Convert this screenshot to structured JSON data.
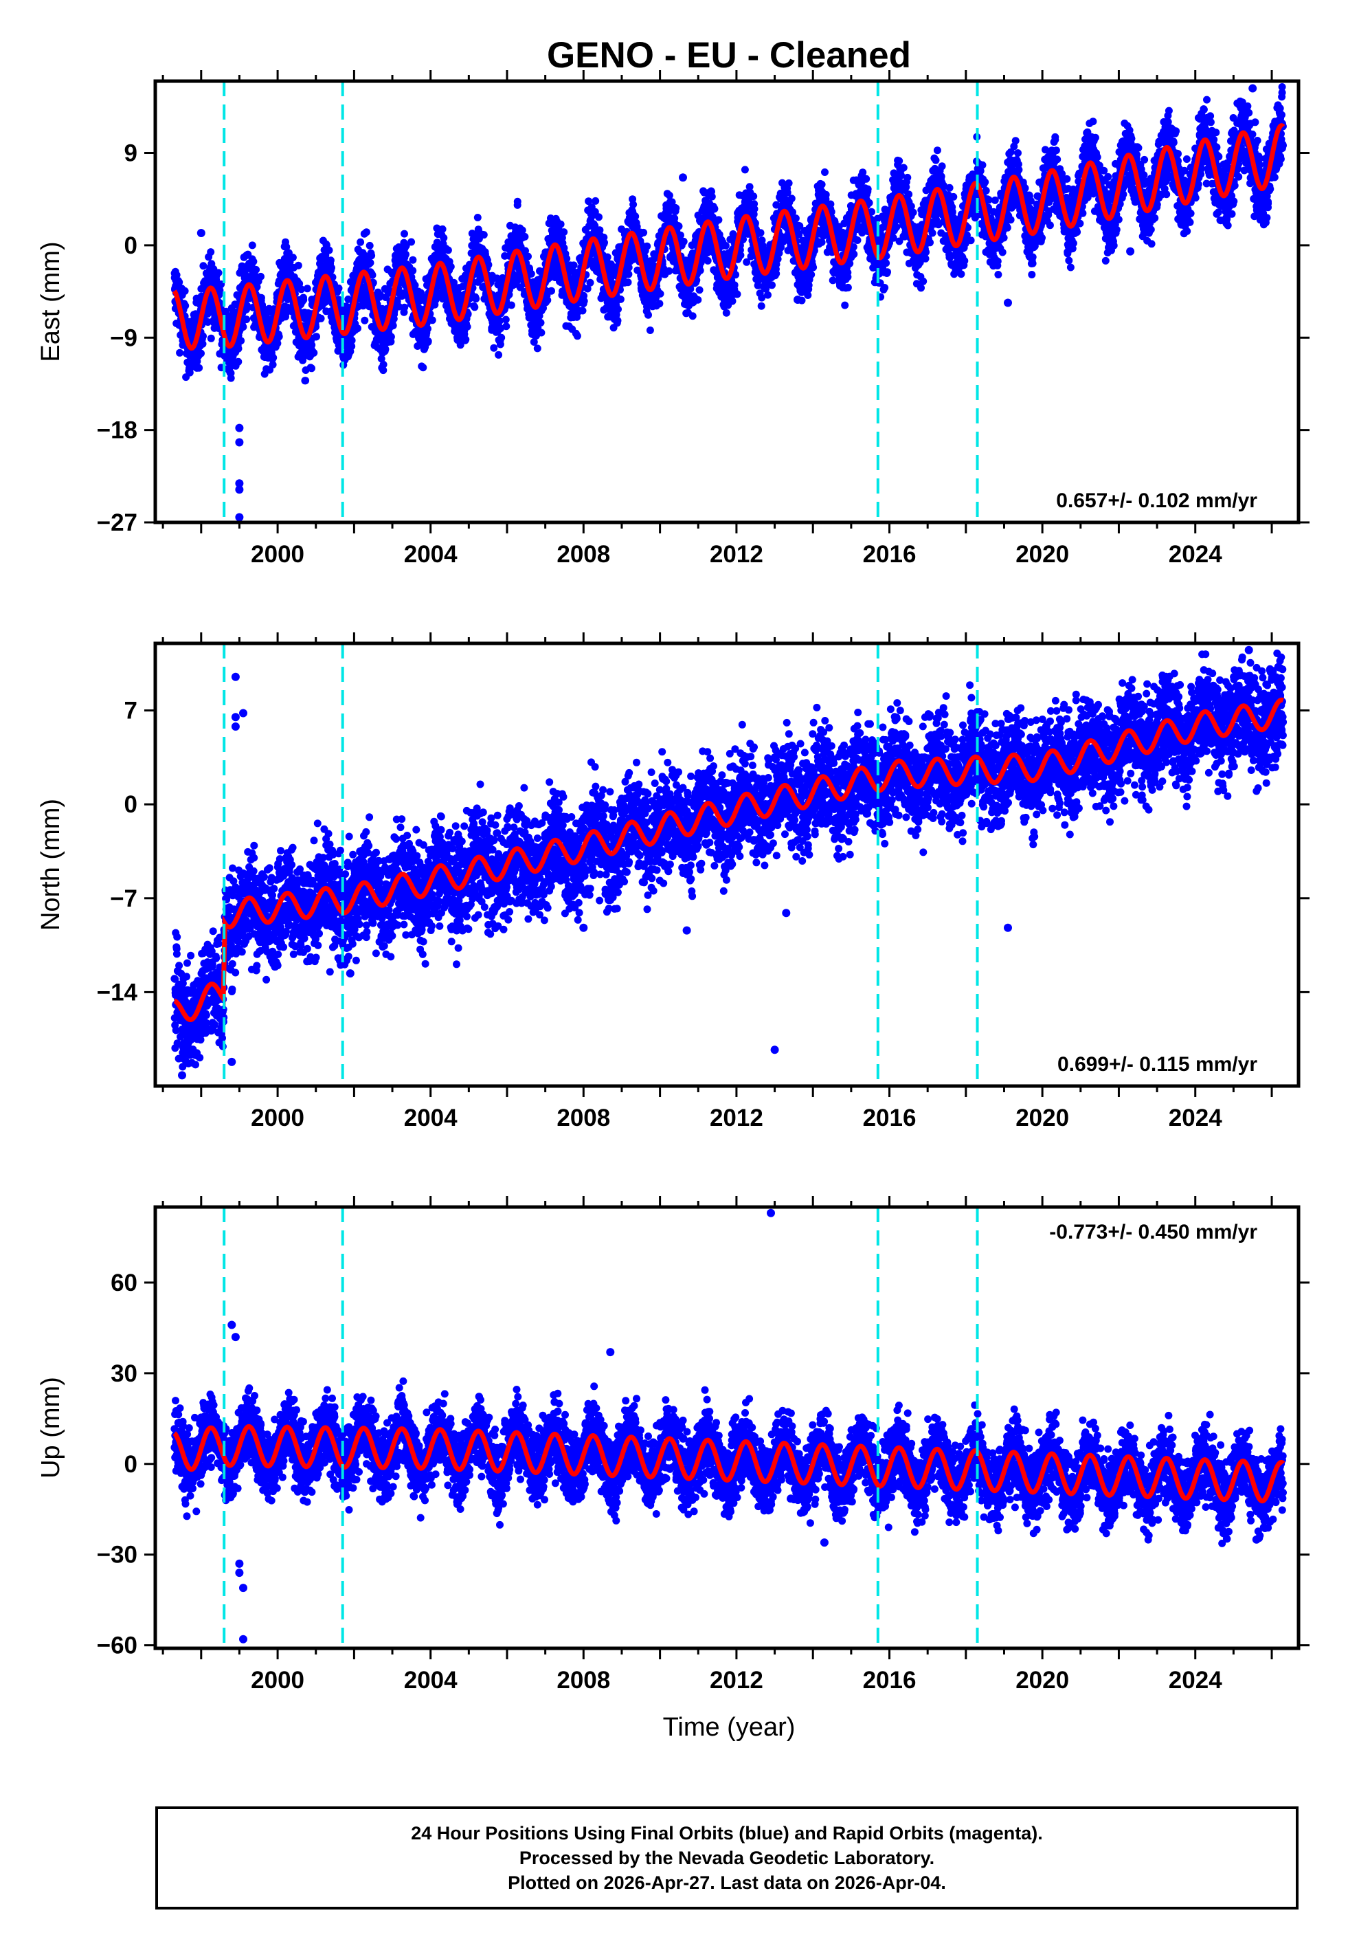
{
  "title": "GENO  - EU - Cleaned",
  "xlabel": "Time (year)",
  "colors": {
    "data": "#0000ff",
    "model": "#ff0000",
    "breaks": "#00e6e6"
  },
  "caption": {
    "line1": "24 Hour Positions Using Final Orbits (blue) and Rapid Orbits (magenta).",
    "line2": "Processed by the Nevada Geodetic Laboratory.",
    "line3": "Plotted on 2026-Apr-27. Last data on 2026-Apr-04."
  },
  "chart_data": [
    {
      "type": "scatter",
      "name": "east",
      "ylabel": "East (mm)",
      "xlim": [
        1996.8,
        2026.7
      ],
      "ylim": [
        -27,
        16
      ],
      "yticks": [
        -27,
        -18,
        -9,
        0,
        9
      ],
      "xticks": [
        2000,
        2004,
        2008,
        2012,
        2016,
        2020,
        2024
      ],
      "break_epochs": [
        1998.6,
        2001.7,
        2015.7,
        2018.3
      ],
      "rate_label": "0.657+/- 0.102 mm/yr",
      "rate_label_position": "bottom-right",
      "trend": [
        [
          1997.3,
          -7.2
        ],
        [
          1998.6,
          -7.0
        ],
        [
          2004,
          -4.8
        ],
        [
          2008,
          -2.4
        ],
        [
          2012,
          -0.2
        ],
        [
          2016,
          1.8
        ],
        [
          2020,
          4.2
        ],
        [
          2024,
          7.2
        ],
        [
          2026.3,
          8.8
        ]
      ],
      "seasonal_amplitude_mm": 2.9,
      "scatter_spread_mm": 1.7,
      "outliers": [
        [
          1999.0,
          -17.8
        ],
        [
          1999.0,
          -19.2
        ],
        [
          1999.0,
          -23.2
        ],
        [
          1999.0,
          -23.8
        ],
        [
          1999.0,
          -26.5
        ],
        [
          2010.6,
          6.6
        ],
        [
          2013.6,
          -5.3
        ],
        [
          2019.1,
          -5.6
        ],
        [
          2022.3,
          -0.6
        ],
        [
          2025.5,
          15.3
        ],
        [
          1998.0,
          1.2
        ]
      ]
    },
    {
      "type": "scatter",
      "name": "north",
      "ylabel": "North (mm)",
      "xlim": [
        1996.8,
        2026.7
      ],
      "ylim": [
        -21,
        12
      ],
      "yticks": [
        -14,
        -7,
        0,
        7
      ],
      "xticks": [
        2000,
        2004,
        2008,
        2012,
        2016,
        2020,
        2024
      ],
      "break_epochs": [
        1998.6,
        2001.7,
        2015.7,
        2018.3
      ],
      "rate_label": "0.699+/- 0.115 mm/yr",
      "rate_label_position": "bottom-right",
      "trend": [
        [
          1997.3,
          -15.6
        ],
        [
          1998.58,
          -14.0
        ],
        [
          1998.62,
          -8.2
        ],
        [
          2002,
          -7.0
        ],
        [
          2008,
          -3.2
        ],
        [
          2012,
          -0.4
        ],
        [
          2016,
          2.2
        ],
        [
          2020,
          2.8
        ],
        [
          2024,
          5.8
        ],
        [
          2026.3,
          6.8
        ]
      ],
      "seasonal_amplitude_mm": 1.0,
      "scatter_spread_mm": 1.9,
      "outliers": [
        [
          1998.9,
          9.5
        ],
        [
          1998.9,
          6.5
        ],
        [
          1999.1,
          6.8
        ],
        [
          1998.9,
          5.8
        ],
        [
          2001.9,
          -12.6
        ],
        [
          2008.0,
          -9.2
        ],
        [
          2010.7,
          -9.4
        ],
        [
          2013.0,
          -18.3
        ],
        [
          2013.3,
          -8.1
        ],
        [
          2019.1,
          -9.2
        ],
        [
          2025.4,
          11.5
        ],
        [
          1998.8,
          -19.2
        ],
        [
          1997.5,
          -20.2
        ]
      ]
    },
    {
      "type": "scatter",
      "name": "up",
      "ylabel": "Up (mm)",
      "xlim": [
        1996.8,
        2026.7
      ],
      "ylim": [
        -61,
        85
      ],
      "yticks": [
        -60,
        -30,
        0,
        30,
        60
      ],
      "xticks": [
        2000,
        2004,
        2008,
        2012,
        2016,
        2020,
        2024
      ],
      "break_epochs": [
        1998.6,
        2001.7,
        2015.7,
        2018.3
      ],
      "rate_label": "-0.773+/- 0.450 mm/yr",
      "rate_label_position": "top-right",
      "trend": [
        [
          1997.3,
          4.0
        ],
        [
          1998.6,
          6.0
        ],
        [
          2004,
          5.0
        ],
        [
          2008,
          3.0
        ],
        [
          2012,
          1.0
        ],
        [
          2016,
          -1.0
        ],
        [
          2020,
          -3.0
        ],
        [
          2024,
          -5.0
        ],
        [
          2026.3,
          -6.0
        ]
      ],
      "seasonal_amplitude_mm": 6.5,
      "scatter_spread_mm": 6.0,
      "outliers": [
        [
          2012.9,
          83
        ],
        [
          2008.7,
          37
        ],
        [
          1999.0,
          -33
        ],
        [
          1999.0,
          -36
        ],
        [
          1999.1,
          -41
        ],
        [
          1999.1,
          -58
        ],
        [
          1998.8,
          46
        ],
        [
          1998.9,
          42
        ],
        [
          2014.3,
          -26
        ],
        [
          2025.6,
          -25
        ]
      ]
    }
  ]
}
